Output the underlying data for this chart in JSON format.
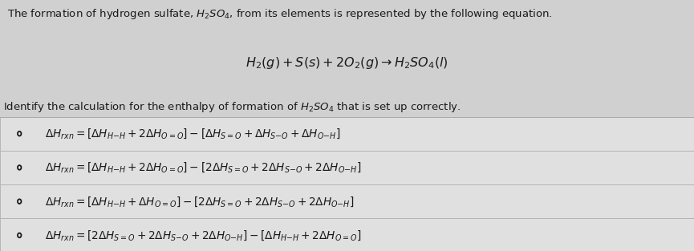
{
  "bg_color": "#d0d0d0",
  "box_bg_color": "#e0e0e0",
  "text_color": "#1a1a1a",
  "figsize": [
    8.65,
    3.13
  ],
  "dpi": 100
}
